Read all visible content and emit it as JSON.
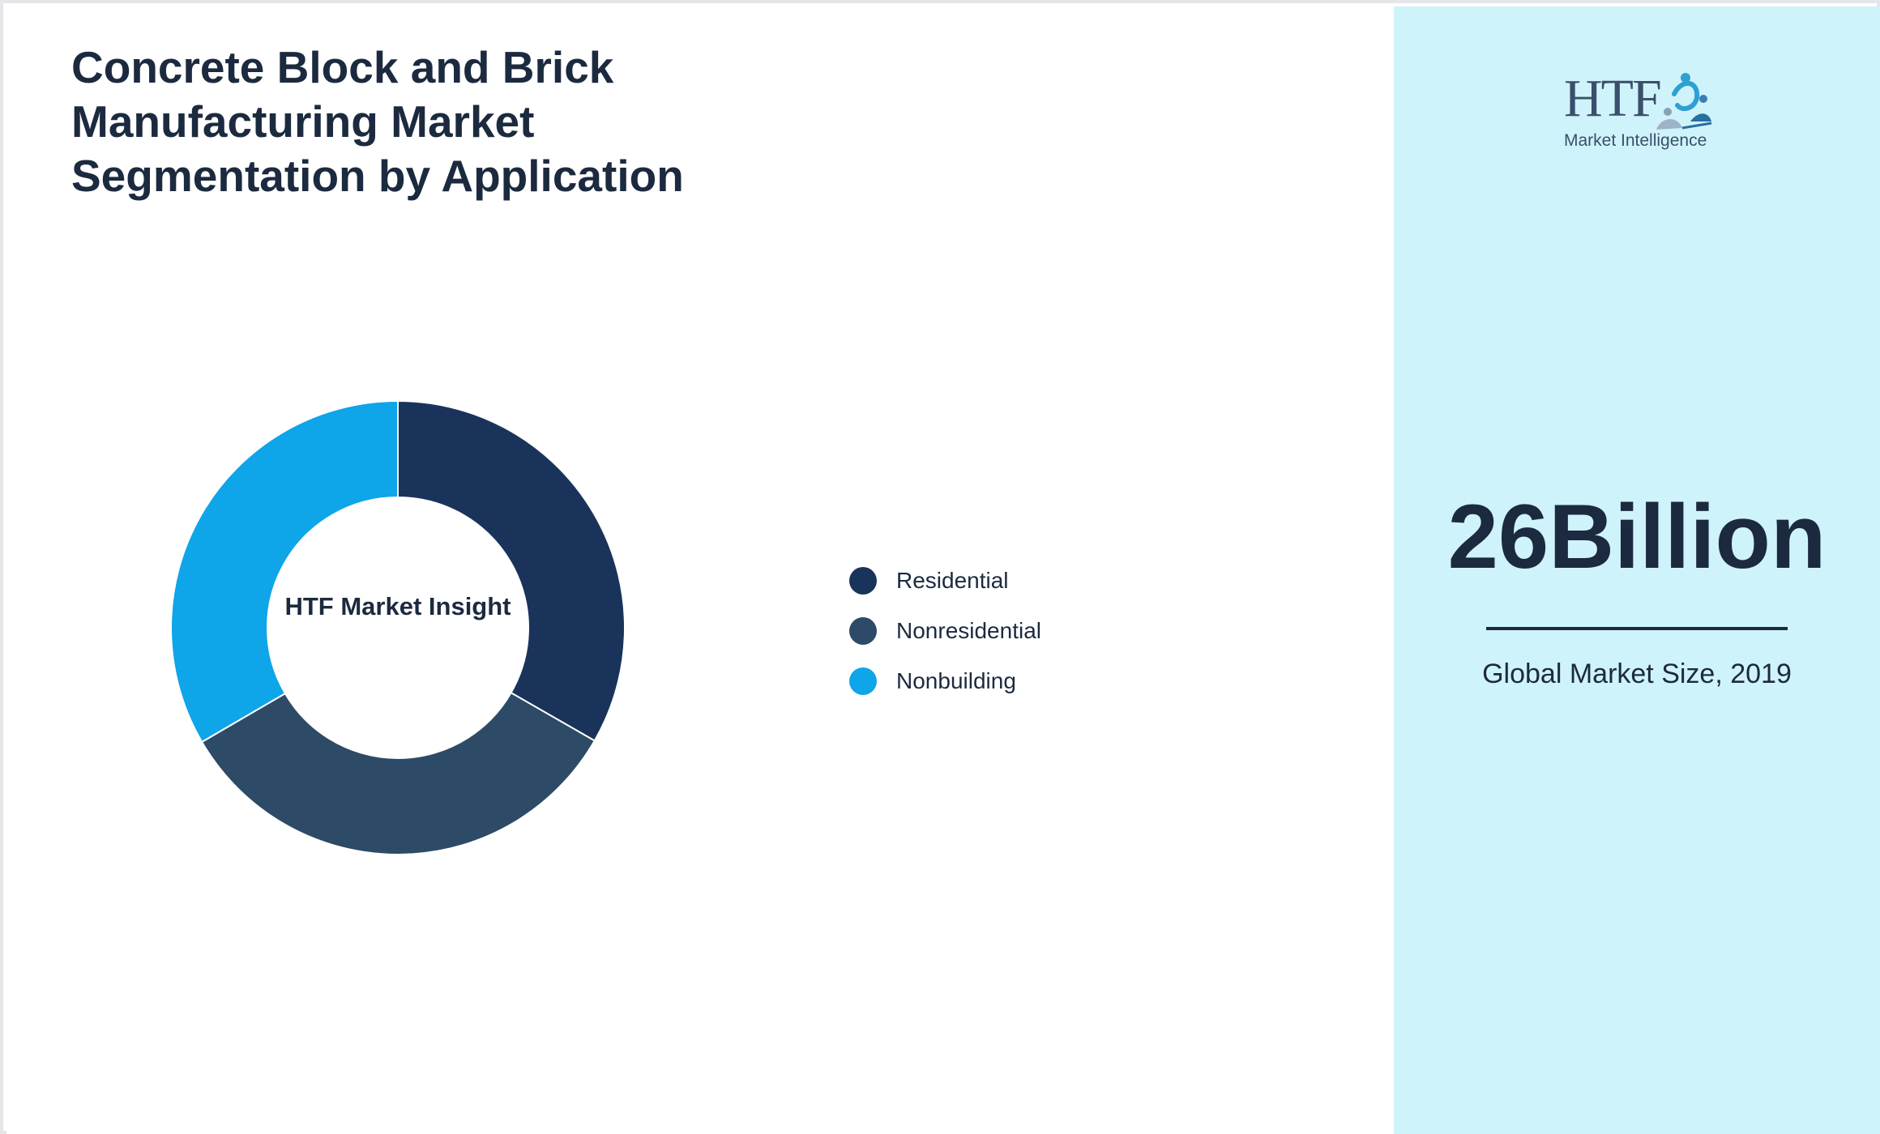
{
  "header": {
    "title": "Concrete Block and Brick Manufacturing Market Segmentation by Application"
  },
  "chart_data": {
    "type": "pie",
    "variant": "donut",
    "center_label": "HTF Market Insight",
    "categories": [
      "Residential",
      "Nonresidential",
      "Nonbuilding"
    ],
    "values": [
      33.3,
      33.3,
      33.4
    ],
    "colors": [
      "#1a335a",
      "#2d4a66",
      "#0ea5e9"
    ],
    "legend_position": "right"
  },
  "sidebar": {
    "logo_text": "HTF",
    "logo_subtext": "Market Intelligence",
    "value": "26Billion",
    "caption": "Global Market Size, 2019",
    "background": "#cff3fb"
  },
  "colors": {
    "text": "#1c2a3f"
  }
}
